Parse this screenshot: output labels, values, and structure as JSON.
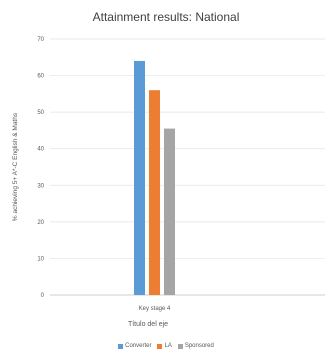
{
  "chart_data": {
    "type": "bar",
    "title": "Attainment results: National",
    "xlabel": "Título del eje",
    "ylabel": "% achieving 5+ A*-C English & Maths",
    "categories": [
      "Key stage 4"
    ],
    "ylim": [
      0,
      70
    ],
    "yticks": [
      0,
      10,
      20,
      30,
      40,
      50,
      60,
      70
    ],
    "grid": true,
    "legend_position": "bottom",
    "series": [
      {
        "name": "Converter",
        "values": [
          64
        ],
        "color": "#5B9BD5"
      },
      {
        "name": "LA",
        "values": [
          56
        ],
        "color": "#ED7D31"
      },
      {
        "name": "Sponsored",
        "values": [
          45.5
        ],
        "color": "#A5A5A5"
      }
    ]
  }
}
